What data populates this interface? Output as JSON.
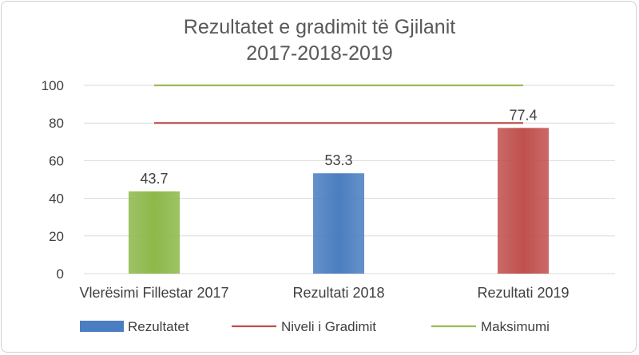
{
  "chart_data": {
    "type": "bar",
    "title": "Rezultatet e gradimit të Gjilanit",
    "subtitle": "2017-2018-2019",
    "categories": [
      "Vlerësimi Fillestar 2017",
      "Rezultati 2018",
      "Rezultati 2019"
    ],
    "series": [
      {
        "name": "Rezultatet",
        "values": [
          43.7,
          53.3,
          77.4
        ],
        "value_labels": [
          "43.7",
          "53.3",
          "77.4"
        ],
        "colors": [
          "#8db84a",
          "#4a7ec0",
          "#c0504d"
        ]
      }
    ],
    "reference_lines": [
      {
        "name": "Niveli i Gradimit",
        "value": 80,
        "color": "#c0504d"
      },
      {
        "name": "Maksimumi",
        "value": 100,
        "color": "#9bbb59"
      }
    ],
    "yticks": [
      "0",
      "20",
      "40",
      "60",
      "80",
      "100"
    ],
    "ylim": [
      0,
      100
    ],
    "grid": true,
    "legend_position": "bottom",
    "legend": [
      "Rezultatet",
      "Niveli i Gradimit",
      "Maksimumi"
    ]
  }
}
